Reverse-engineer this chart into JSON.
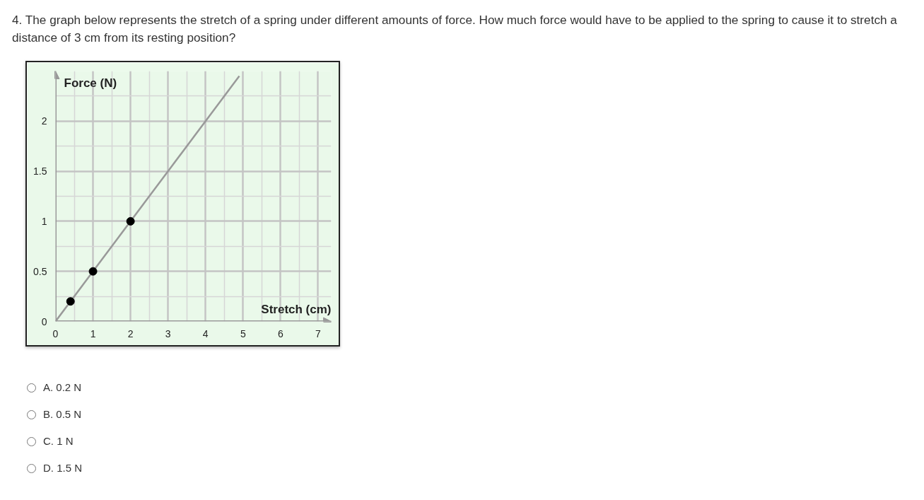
{
  "chart_data": {
    "type": "scatter",
    "title": "4. The graph below represents the stretch of a spring under different amounts of force. How much force would have to be applied to the spring to cause it to stretch a distance of 3 cm from its resting position?",
    "xlabel": "Stretch (cm)",
    "ylabel": "Force (N)",
    "xlim": [
      0,
      7.35
    ],
    "ylim": [
      0,
      2.5
    ],
    "xticks": [
      0,
      {
        "value": 0.5,
        "label": null
      },
      1,
      {
        "value": 1.5,
        "label": null
      },
      2,
      {
        "value": 2.5,
        "label": null
      },
      3,
      {
        "value": 3.5,
        "label": null
      },
      4,
      {
        "value": 4.5,
        "label": null
      },
      5,
      {
        "value": 5.5,
        "label": null
      },
      6,
      {
        "value": 6.5,
        "label": null
      },
      7
    ],
    "yticks": [
      0,
      {
        "value": 0.25,
        "label": null
      },
      0.5,
      {
        "value": 0.75,
        "label": null
      },
      1,
      {
        "value": 1.25,
        "label": null
      },
      1.5,
      {
        "value": 1.75,
        "label": null
      },
      2,
      {
        "value": 2.25,
        "label": null
      }
    ],
    "grid": true,
    "series": [
      {
        "x": [
          0.4,
          1,
          2
        ],
        "values": [
          0.2,
          0.5,
          1
        ],
        "color": "#000000",
        "marker": "circle"
      },
      {
        "type": "line",
        "x": [
          0,
          4.9
        ],
        "values": [
          0,
          2.45
        ],
        "color": "#999999"
      }
    ],
    "annotations": [
      "A. 0.2 N",
      "B. 0.5 N",
      "C. 1 N",
      "D. 1.5 N"
    ]
  }
}
